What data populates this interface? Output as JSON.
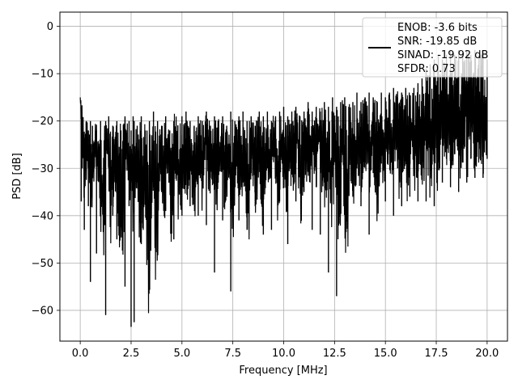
{
  "chart_data": {
    "type": "line",
    "title": "",
    "xlabel": "Frequency [MHz]",
    "ylabel": "PSD [dB]",
    "xlim": [
      -1.0,
      21.0
    ],
    "ylim": [
      -66.5,
      3.0
    ],
    "xticks": [
      0.0,
      2.5,
      5.0,
      7.5,
      10.0,
      12.5,
      15.0,
      17.5,
      20.0
    ],
    "xtick_labels": [
      "0.0",
      "2.5",
      "5.0",
      "7.5",
      "10.0",
      "12.5",
      "15.0",
      "17.5",
      "20.0"
    ],
    "yticks": [
      0,
      -10,
      -20,
      -30,
      -40,
      -50,
      -60
    ],
    "ytick_labels": [
      "0",
      "−10",
      "−20",
      "−30",
      "−40",
      "−50",
      "−60"
    ],
    "grid": true,
    "legend_position": "top-right",
    "color": "#000000",
    "legend_lines": [
      "ENOB: -3.6 bits",
      "SNR: -19.85 dB",
      "SINAD: -19.92 dB",
      "SFDR: 0.73"
    ],
    "series": [
      {
        "x": [
          0.0,
          0.05,
          0.1,
          0.2,
          0.3,
          0.4,
          0.5,
          0.6,
          0.8,
          1.0,
          1.2,
          1.25,
          1.4,
          1.6,
          1.8,
          2.0,
          2.2,
          2.4,
          2.5,
          2.6,
          2.65,
          2.8,
          3.0,
          3.2,
          3.4,
          3.6,
          3.8,
          4.0,
          4.2,
          4.4,
          4.6,
          4.8,
          5.0,
          5.2,
          5.4,
          5.6,
          5.8,
          6.0,
          6.2,
          6.4,
          6.6,
          6.8,
          7.0,
          7.2,
          7.4,
          7.6,
          7.8,
          8.0,
          8.2,
          8.4,
          8.6,
          8.8,
          9.0,
          9.2,
          9.4,
          9.6,
          9.8,
          10.0,
          10.2,
          10.4,
          10.6,
          10.8,
          11.0,
          11.2,
          11.4,
          11.6,
          11.8,
          12.0,
          12.2,
          12.4,
          12.6,
          12.8,
          13.0,
          13.2,
          13.4,
          13.6,
          13.8,
          14.0,
          14.2,
          14.4,
          14.6,
          14.8,
          15.0,
          15.2,
          15.4,
          15.6,
          15.8,
          16.0,
          16.2,
          16.4,
          16.6,
          16.8,
          17.0,
          17.2,
          17.4,
          17.6,
          17.8,
          18.0,
          18.2,
          18.4,
          18.6,
          18.8,
          19.0,
          19.2,
          19.4,
          19.6,
          19.8,
          20.0
        ],
        "y": [
          -15,
          -37,
          -30,
          -43,
          -28,
          -38,
          -54,
          -26,
          -48,
          -33,
          -42,
          -61,
          -30,
          -40,
          -45,
          -34,
          -55,
          -38,
          -63.5,
          -36,
          -62.5,
          -33,
          -46,
          -29,
          -49,
          -31,
          -44,
          -35,
          -39,
          -33,
          -45,
          -31,
          -40,
          -28,
          -38,
          -33,
          -40,
          -30,
          -42,
          -32,
          -52,
          -30,
          -41,
          -34,
          -56,
          -29,
          -41,
          -33,
          -43,
          -31,
          -38,
          -29,
          -44,
          -30,
          -43,
          -32,
          -37,
          -28,
          -46,
          -31,
          -37,
          -30,
          -35,
          -28,
          -43,
          -34,
          -44,
          -33,
          -52,
          -30,
          -57,
          -34,
          -39,
          -32,
          -36,
          -30,
          -38,
          -28,
          -44,
          -31,
          -35,
          -29,
          -37,
          -27,
          -40,
          -30,
          -38,
          -28,
          -36,
          -30,
          -37,
          -27,
          -37,
          -29,
          -38,
          -26,
          -33,
          -28,
          -34,
          -27,
          -35,
          -27,
          -33,
          -28,
          -32,
          -28,
          -32,
          -28
        ],
        "y_upper": [
          -15,
          -18,
          -20,
          -24,
          -20,
          -22,
          -20,
          -21,
          -22,
          -20,
          -21,
          -20,
          -19,
          -21,
          -20,
          -22,
          -19,
          -20,
          -22,
          -19,
          -20,
          -21,
          -19,
          -22,
          -20,
          -18,
          -20,
          -21,
          -19,
          -22,
          -20,
          -21,
          -19,
          -18,
          -20,
          -21,
          -19,
          -20,
          -18,
          -21,
          -19,
          -20,
          -19,
          -21,
          -18,
          -20,
          -19,
          -18,
          -20,
          -19,
          -21,
          -18,
          -19,
          -18,
          -20,
          -19,
          -18,
          -17,
          -19,
          -18,
          -17,
          -19,
          -18,
          -16,
          -18,
          -17,
          -18,
          -16,
          -17,
          -15,
          -17,
          -16,
          -15,
          -17,
          -16,
          -14,
          -16,
          -15,
          -14,
          -15,
          -16,
          -14,
          -15,
          -14,
          -13,
          -15,
          -14,
          -13,
          -15,
          -13,
          -12,
          -11,
          -9,
          -8,
          -7,
          -6,
          -7,
          -6,
          -5,
          -6,
          -5,
          -6,
          -5,
          -6,
          -5,
          -6,
          -5,
          -7
        ]
      }
    ]
  }
}
